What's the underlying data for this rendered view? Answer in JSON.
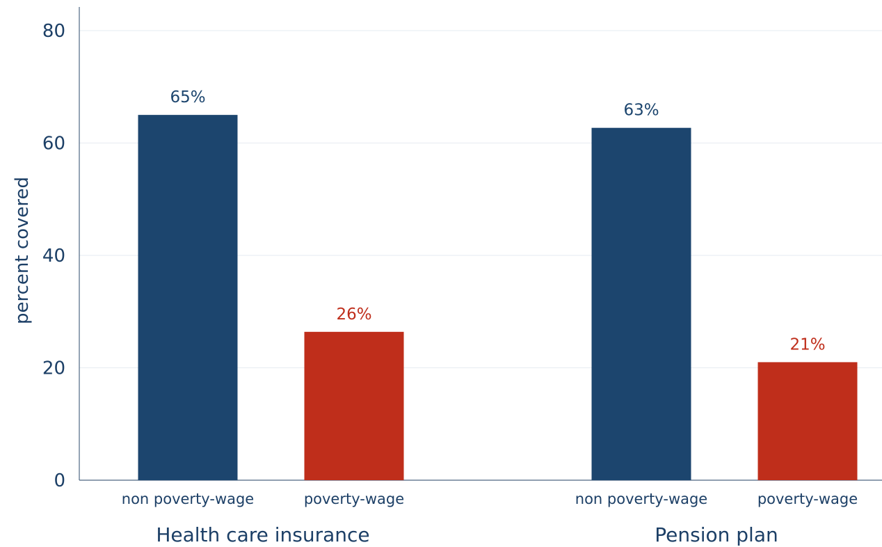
{
  "chart_data": {
    "type": "bar",
    "title": "",
    "ylabel": "percent covered",
    "ylim": [
      0,
      80
    ],
    "yticks": [
      "0",
      "20",
      "40",
      "60",
      "80"
    ],
    "ytick_values": [
      0,
      20,
      40,
      60,
      80
    ],
    "grid": true,
    "groups": [
      {
        "label": "Health care insurance",
        "bars": [
          {
            "category": "non poverty-wage",
            "value": 65,
            "label": "65%",
            "color": "#1c456e"
          },
          {
            "category": "poverty-wage",
            "value": 26.4,
            "label": "26%",
            "color": "#bf2e1b"
          }
        ]
      },
      {
        "label": "Pension plan",
        "bars": [
          {
            "category": "non poverty-wage",
            "value": 62.7,
            "label": "63%",
            "color": "#1c456e"
          },
          {
            "category": "poverty-wage",
            "value": 21,
            "label": "21%",
            "color": "#bf2e1b"
          }
        ]
      }
    ]
  }
}
